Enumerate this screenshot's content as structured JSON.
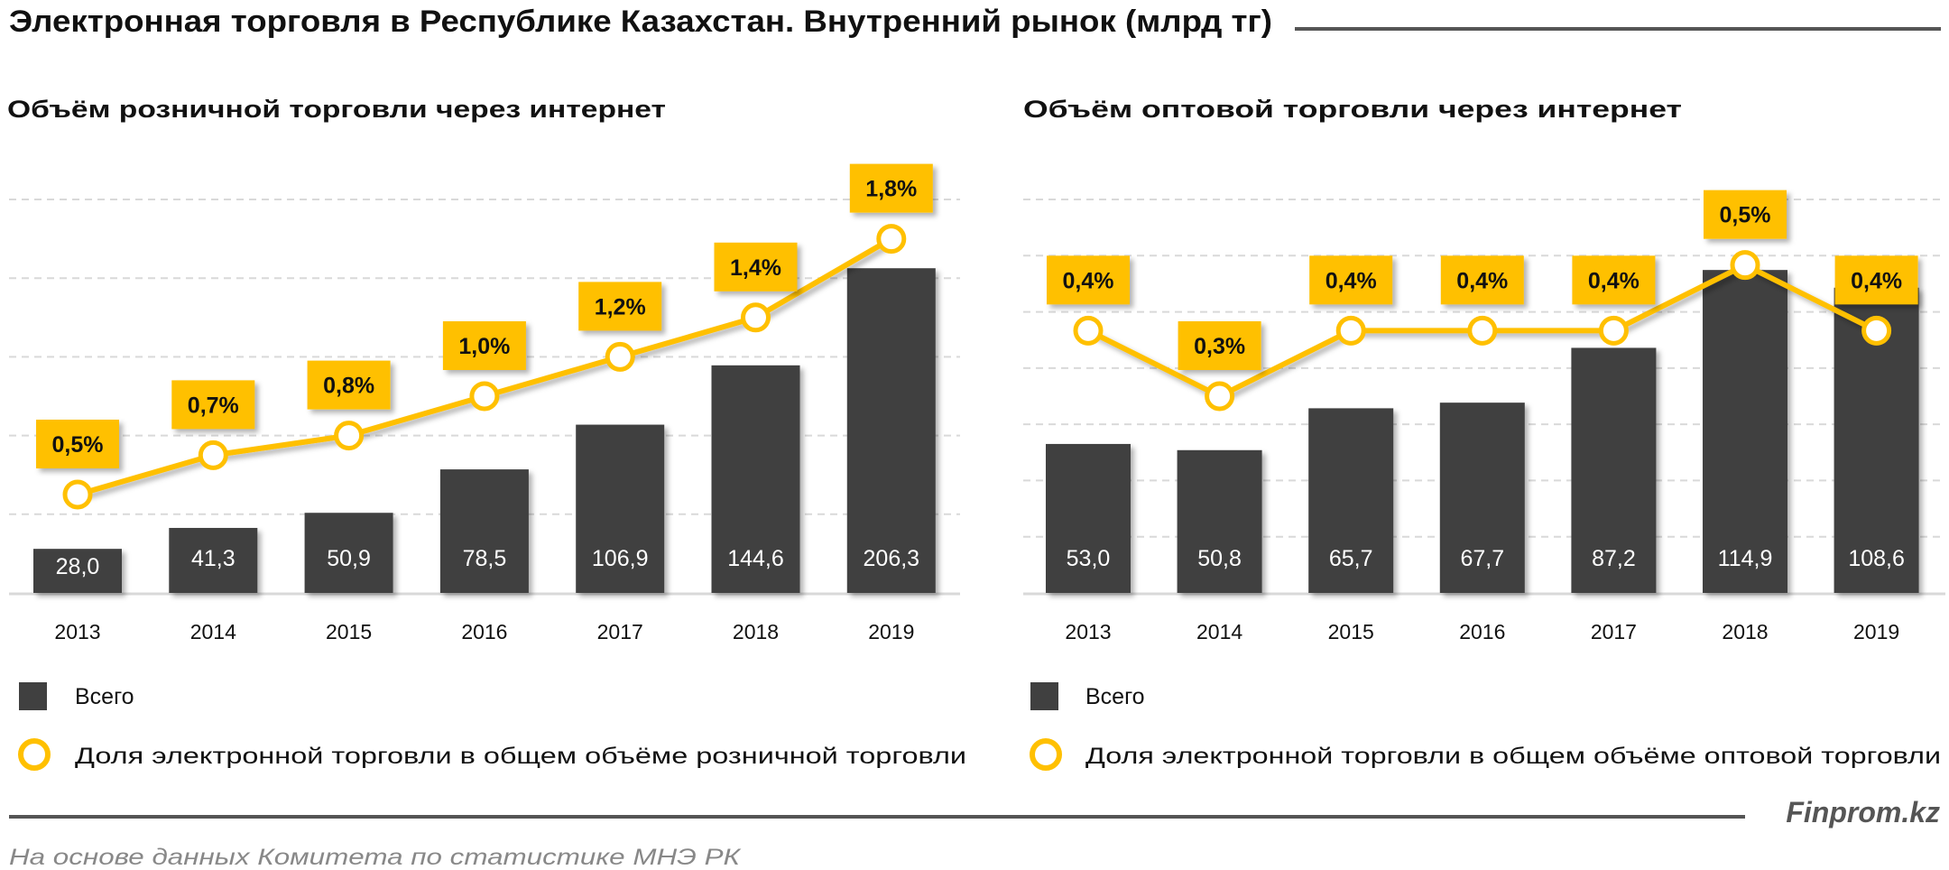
{
  "title": "Электронная торговля в Республике Казахстан. Внутренний рынок (млрд тг)",
  "brand": "Finprom.kz",
  "source": "На основе данных  Комитета по статистике МНЭ РК",
  "colors": {
    "bar": "#404040",
    "line": "#FFC000",
    "label_box": "#FFC000",
    "grid": "#D9D9D9"
  },
  "chart_data": [
    {
      "type": "bar+line",
      "title": "Объём розничной торговли через интернет",
      "categories": [
        "2013",
        "2014",
        "2015",
        "2016",
        "2017",
        "2018",
        "2019"
      ],
      "ylim": [
        0,
        250
      ],
      "y2lim": [
        0,
        2.0
      ],
      "grid": true,
      "legend": "bottom-left",
      "series": [
        {
          "name": "Всего",
          "type": "bar",
          "values": [
            28.0,
            41.3,
            50.9,
            78.5,
            106.9,
            144.6,
            206.3
          ],
          "labels": [
            "28,0",
            "41,3",
            "50,9",
            "78,5",
            "106,9",
            "144,6",
            "206,3"
          ]
        },
        {
          "name": "Доля электронной торговли в общем объёме розничной торговли",
          "type": "line",
          "axis": "secondary",
          "values": [
            0.5,
            0.7,
            0.8,
            1.0,
            1.2,
            1.4,
            1.8
          ],
          "labels": [
            "0,5%",
            "0,7%",
            "0,8%",
            "1,0%",
            "1,2%",
            "1,4%",
            "1,8%"
          ]
        }
      ]
    },
    {
      "type": "bar+line",
      "title": "Объём оптовой торговли через интернет",
      "categories": [
        "2013",
        "2014",
        "2015",
        "2016",
        "2017",
        "2018",
        "2019"
      ],
      "ylim": [
        0,
        140
      ],
      "y2lim": [
        0,
        0.6
      ],
      "grid": true,
      "legend": "bottom-left",
      "series": [
        {
          "name": "Всего",
          "type": "bar",
          "values": [
            53.0,
            50.8,
            65.7,
            67.7,
            87.2,
            114.9,
            108.6
          ],
          "labels": [
            "53,0",
            "50,8",
            "65,7",
            "67,7",
            "87,2",
            "114,9",
            "108,6"
          ]
        },
        {
          "name": "Доля электронной торговли в общем объёме оптовой торговли",
          "type": "line",
          "axis": "secondary",
          "values": [
            0.4,
            0.3,
            0.4,
            0.4,
            0.4,
            0.5,
            0.4
          ],
          "labels": [
            "0,4%",
            "0,3%",
            "0,4%",
            "0,4%",
            "0,4%",
            "0,5%",
            "0,4%"
          ]
        }
      ]
    }
  ]
}
